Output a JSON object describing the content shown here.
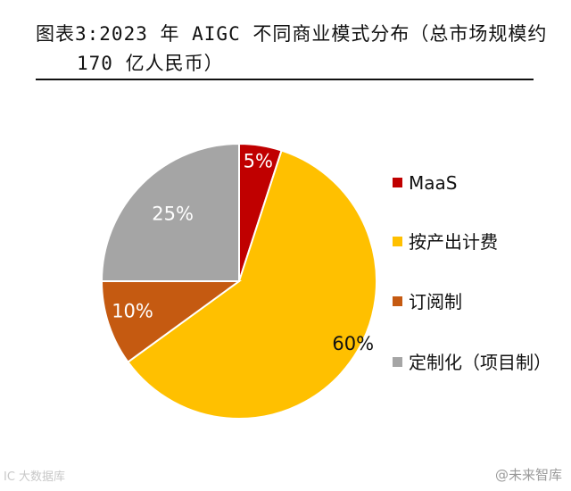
{
  "header": {
    "title_line1": "图表3:2023 年 AIGC 不同商业模式分布（总市场规模约",
    "title_line2": "170 亿人民币）"
  },
  "chart_data": {
    "type": "pie",
    "categories": [
      "MaaS",
      "按产出计费",
      "订阅制",
      "定制化（项目制）"
    ],
    "values": [
      5,
      60,
      10,
      25
    ],
    "value_labels": [
      "5%",
      "60%",
      "10%",
      "25%"
    ],
    "colors": [
      "#c00000",
      "#ffc000",
      "#c55a11",
      "#a5a5a5"
    ],
    "label_colors": [
      "#ffffff",
      "#111111",
      "#ffffff",
      "#ffffff"
    ],
    "start_angle_deg": 0,
    "direction": "clockwise",
    "legend_position": "right",
    "legend_labels": [
      "MaaS",
      "按产出计费",
      "订阅制",
      "定制化（项目制）"
    ]
  },
  "watermarks": {
    "right": "@未来智库",
    "left": "IC 大数据库"
  }
}
